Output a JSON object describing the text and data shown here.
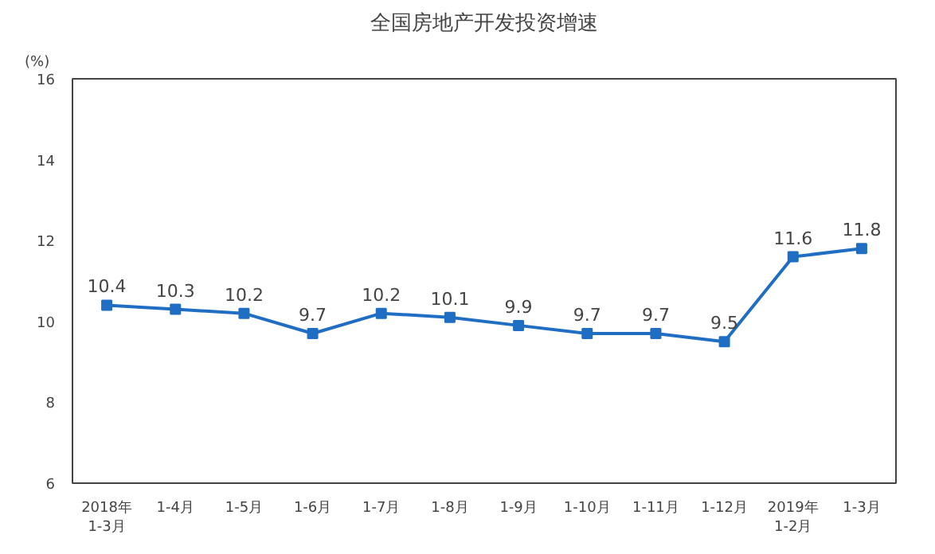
{
  "chart_data": {
    "type": "line",
    "title": "全国房地产开发投资增速",
    "ylabel": "(%)",
    "categories": [
      "2018年\n1-3月",
      "1-4月",
      "1-5月",
      "1-6月",
      "1-7月",
      "1-8月",
      "1-9月",
      "1-10月",
      "1-11月",
      "1-12月",
      "2019年\n1-2月",
      "1-3月"
    ],
    "values": [
      10.4,
      10.3,
      10.2,
      9.7,
      10.2,
      10.1,
      9.9,
      9.7,
      9.7,
      9.5,
      11.6,
      11.8
    ],
    "color": "#1f6ec4",
    "ylim": [
      6,
      16
    ],
    "yticks": [
      6,
      8,
      10,
      12,
      14,
      16
    ],
    "grid": false,
    "marker": "square",
    "line_style": "solid",
    "data_labels": true
  }
}
